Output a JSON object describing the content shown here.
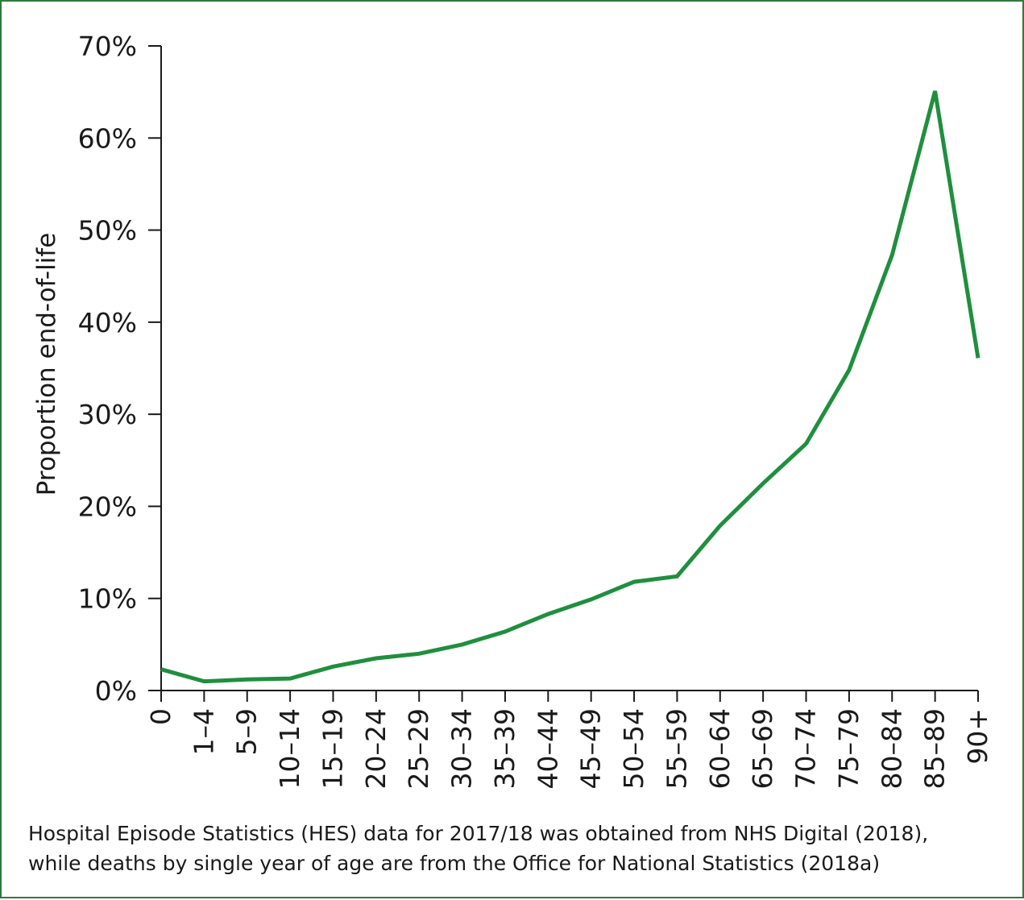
{
  "chart_data": {
    "type": "line",
    "title": "",
    "xlabel": "",
    "ylabel": "Proportion end-of-life",
    "categories": [
      "0",
      "1–4",
      "5–9",
      "10–14",
      "15–19",
      "20–24",
      "25–29",
      "30–34",
      "35–39",
      "40–44",
      "45–49",
      "50–54",
      "55–59",
      "60–64",
      "65–69",
      "70–74",
      "75–79",
      "80–84",
      "85–89",
      "90+"
    ],
    "series": [
      {
        "values": [
          2.3,
          1.0,
          1.2,
          1.3,
          2.6,
          3.5,
          4.0,
          5.0,
          6.4,
          8.3,
          9.9,
          11.8,
          12.4,
          17.9,
          22.5,
          26.8,
          34.8,
          47.3,
          65.1,
          36.1
        ],
        "color": "#1f8f3e"
      }
    ],
    "yticks": [
      "0%",
      "10%",
      "20%",
      "30%",
      "40%",
      "50%",
      "60%",
      "70%"
    ],
    "ylim": [
      0,
      70
    ],
    "grid": false,
    "legend": "none"
  },
  "caption": {
    "line1": "Hospital Episode Statistics (HES) data for 2017/18 was obtained from NHS Digital (2018),",
    "line2": "while deaths by single year of age are from the Office for National Statistics (2018a)"
  },
  "colors": {
    "frame": "#2f7a3a",
    "line": "#1f8f3e",
    "axis": "#1a1a1a"
  }
}
